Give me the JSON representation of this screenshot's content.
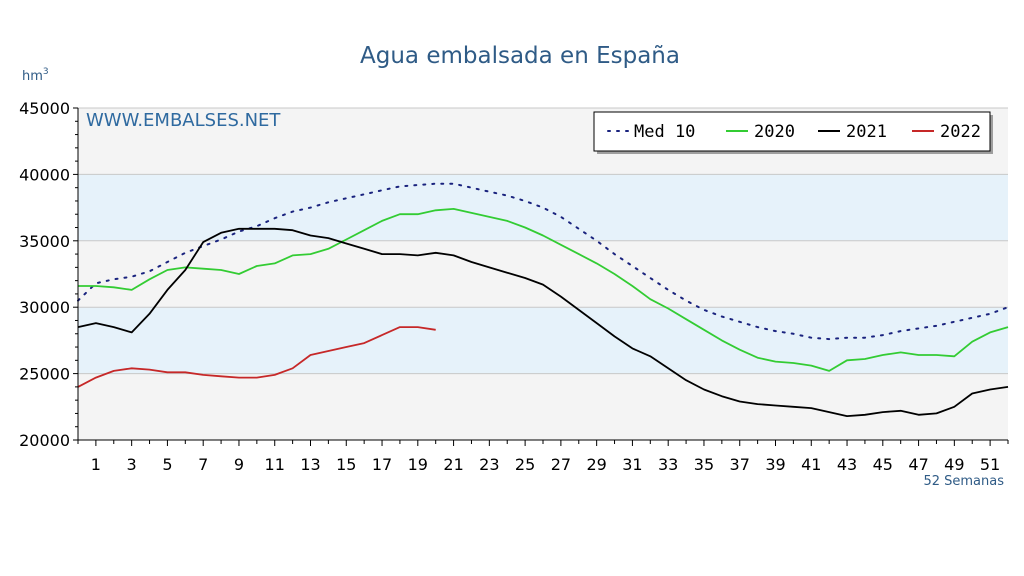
{
  "chart_data": {
    "type": "line",
    "title": "Agua embalsada en España",
    "ylabel": "hm",
    "ylabel_sup": "3",
    "xlabel": "52 Semanas",
    "watermark": "WWW.EMBALSES.NET",
    "xlim": [
      0,
      52
    ],
    "ylim": [
      20000,
      45000
    ],
    "yticks": [
      20000,
      25000,
      30000,
      35000,
      40000,
      45000
    ],
    "xticks": [
      1,
      3,
      5,
      7,
      9,
      11,
      13,
      15,
      17,
      19,
      21,
      23,
      25,
      27,
      29,
      31,
      33,
      35,
      37,
      39,
      41,
      43,
      45,
      47,
      49,
      51
    ],
    "bands": [
      [
        25000,
        30000
      ],
      [
        35000,
        40000
      ]
    ],
    "grid": true,
    "legend_position": "top-right",
    "series": [
      {
        "name": "Med 10",
        "color": "#1a237e",
        "style": "dotted",
        "x": [
          0,
          1,
          2,
          3,
          4,
          5,
          6,
          7,
          8,
          9,
          10,
          11,
          12,
          13,
          14,
          15,
          16,
          17,
          18,
          19,
          20,
          21,
          22,
          23,
          24,
          25,
          26,
          27,
          28,
          29,
          30,
          31,
          32,
          33,
          34,
          35,
          36,
          37,
          38,
          39,
          40,
          41,
          42,
          43,
          44,
          45,
          46,
          47,
          48,
          49,
          50,
          51,
          52
        ],
        "values": [
          30500,
          31800,
          32100,
          32300,
          32700,
          33400,
          34100,
          34600,
          35100,
          35700,
          36100,
          36700,
          37200,
          37500,
          37900,
          38200,
          38500,
          38800,
          39100,
          39200,
          39300,
          39300,
          39000,
          38700,
          38400,
          38000,
          37500,
          36800,
          35900,
          35000,
          34000,
          33100,
          32200,
          31300,
          30500,
          29800,
          29300,
          28900,
          28500,
          28200,
          28000,
          27700,
          27600,
          27700,
          27700,
          27900,
          28200,
          28400,
          28600,
          28900,
          29200,
          29500,
          30000
        ]
      },
      {
        "name": "2020",
        "color": "#33cc33",
        "style": "solid",
        "x": [
          0,
          1,
          2,
          3,
          4,
          5,
          6,
          7,
          8,
          9,
          10,
          11,
          12,
          13,
          14,
          15,
          16,
          17,
          18,
          19,
          20,
          21,
          22,
          23,
          24,
          25,
          26,
          27,
          28,
          29,
          30,
          31,
          32,
          33,
          34,
          35,
          36,
          37,
          38,
          39,
          40,
          41,
          42,
          43,
          44,
          45,
          46,
          47,
          48,
          49,
          50,
          51,
          52
        ],
        "values": [
          31600,
          31600,
          31500,
          31300,
          32100,
          32800,
          33000,
          32900,
          32800,
          32500,
          33100,
          33300,
          33900,
          34000,
          34400,
          35100,
          35800,
          36500,
          37000,
          37000,
          37300,
          37400,
          37100,
          36800,
          36500,
          36000,
          35400,
          34700,
          34000,
          33300,
          32500,
          31600,
          30600,
          29900,
          29100,
          28300,
          27500,
          26800,
          26200,
          25900,
          25800,
          25600,
          25200,
          26000,
          26100,
          26400,
          26600,
          26400,
          26400,
          26300,
          27400,
          28100,
          28500
        ]
      },
      {
        "name": "2021",
        "color": "#000000",
        "style": "solid",
        "x": [
          0,
          1,
          2,
          3,
          4,
          5,
          6,
          7,
          8,
          9,
          10,
          11,
          12,
          13,
          14,
          15,
          16,
          17,
          18,
          19,
          20,
          21,
          22,
          23,
          24,
          25,
          26,
          27,
          28,
          29,
          30,
          31,
          32,
          33,
          34,
          35,
          36,
          37,
          38,
          39,
          40,
          41,
          42,
          43,
          44,
          45,
          46,
          47,
          48,
          49,
          50,
          51,
          52
        ],
        "values": [
          28500,
          28800,
          28500,
          28100,
          29500,
          31300,
          32800,
          34900,
          35600,
          35900,
          35900,
          35900,
          35800,
          35400,
          35200,
          34800,
          34400,
          34000,
          34000,
          33900,
          34100,
          33900,
          33400,
          33000,
          32600,
          32200,
          31700,
          30800,
          29800,
          28800,
          27800,
          26900,
          26300,
          25400,
          24500,
          23800,
          23300,
          22900,
          22700,
          22600,
          22500,
          22400,
          22100,
          21800,
          21900,
          22100,
          22200,
          21900,
          22000,
          22500,
          23500,
          23800,
          24000
        ]
      },
      {
        "name": "2022",
        "color": "#c62828",
        "style": "solid",
        "x": [
          0,
          1,
          2,
          3,
          4,
          5,
          6,
          7,
          8,
          9,
          10,
          11,
          12,
          13,
          14,
          15,
          16,
          17,
          18,
          19,
          20
        ],
        "values": [
          24000,
          24700,
          25200,
          25400,
          25300,
          25100,
          25100,
          24900,
          24800,
          24700,
          24700,
          24900,
          25400,
          26400,
          26700,
          27000,
          27300,
          27900,
          28500,
          28500,
          28300
        ]
      }
    ]
  }
}
